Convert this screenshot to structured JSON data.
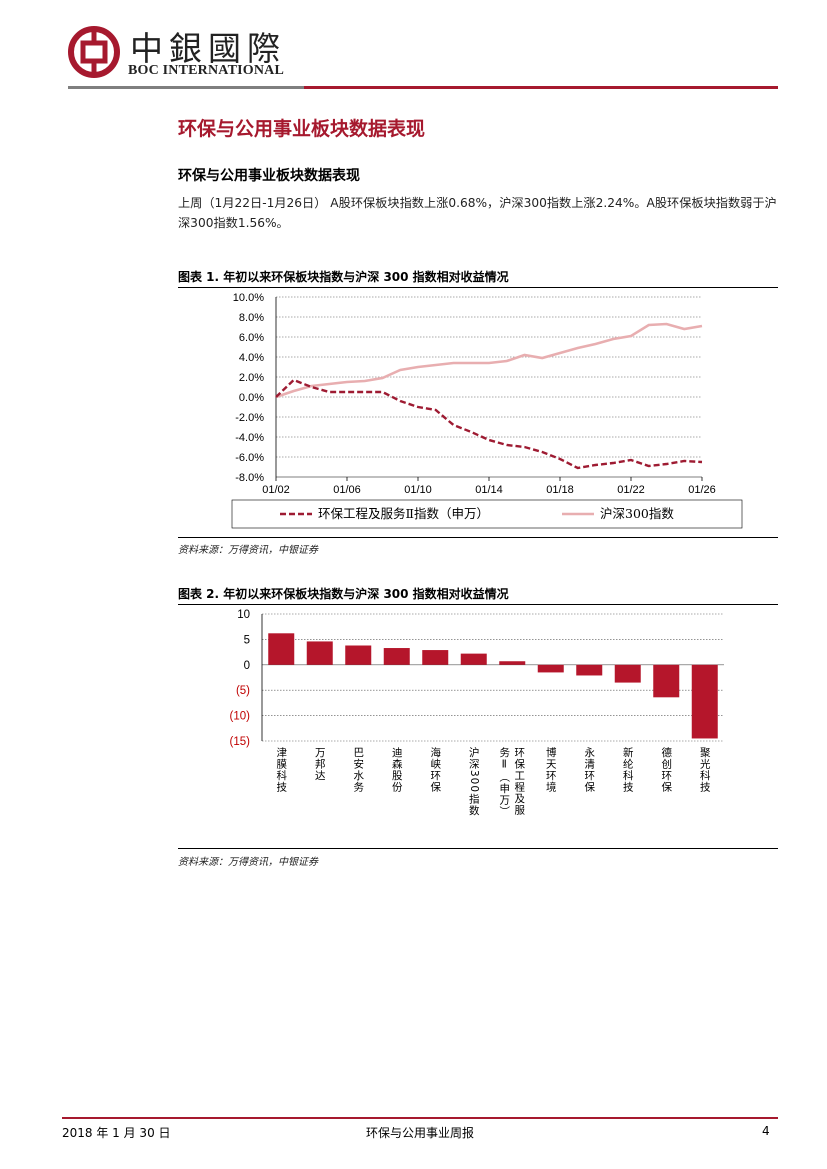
{
  "header": {
    "logo_cn": "中銀國際",
    "logo_en": "BOC INTERNATIONAL"
  },
  "section_title": "环保与公用事业板块数据表现",
  "subsection_title": "环保与公用事业板块数据表现",
  "paragraph": "上周（1月22日-1月26日） A股环保板块指数上涨0.68%，沪深300指数上涨2.24%。A股环保板块指数弱于沪深300指数1.56%。",
  "figure1": {
    "title": "图表 1. 年初以来环保板块指数与沪深 300 指数相对收益情况",
    "source": "资料来源：万得资讯，中银证券"
  },
  "figure2": {
    "title": "图表 2. 年初以来环保板块指数与沪深 300 指数相对收益情况",
    "source": "资料来源：万得资讯，中银证券"
  },
  "footer": {
    "date": "2018 年 1 月 30 日",
    "report": "环保与公用事业周报",
    "page": "4"
  },
  "colors": {
    "brand_red": "#a6192e",
    "series_env": "#9e1b32",
    "series_csi": "#e8aeb0",
    "bar": "#b5162b"
  },
  "chart_data": [
    {
      "type": "line",
      "x": [
        "01/02",
        "01/03",
        "01/04",
        "01/05",
        "01/06",
        "01/07",
        "01/08",
        "01/09",
        "01/10",
        "01/11",
        "01/12",
        "01/13",
        "01/14",
        "01/15",
        "01/16",
        "01/17",
        "01/18",
        "01/19",
        "01/20",
        "01/21",
        "01/22",
        "01/23",
        "01/24",
        "01/25",
        "01/26"
      ],
      "xticks": [
        "01/02",
        "01/06",
        "01/10",
        "01/14",
        "01/18",
        "01/22",
        "01/26"
      ],
      "series": [
        {
          "name": "环保工程及服务Ⅱ指数（申万）",
          "style": "dashed",
          "values": [
            0.0,
            1.7,
            1.0,
            0.5,
            0.5,
            0.5,
            0.5,
            -0.4,
            -1.0,
            -1.3,
            -2.8,
            -3.5,
            -4.3,
            -4.8,
            -5.0,
            -5.5,
            -6.2,
            -7.1,
            -6.8,
            -6.6,
            -6.3,
            -6.9,
            -6.7,
            -6.4,
            -6.5
          ]
        },
        {
          "name": "沪深300指数",
          "style": "solid",
          "values": [
            0.0,
            0.6,
            1.1,
            1.3,
            1.5,
            1.6,
            1.9,
            2.7,
            3.0,
            3.2,
            3.4,
            3.4,
            3.4,
            3.6,
            4.2,
            3.9,
            4.4,
            4.9,
            5.3,
            5.8,
            6.1,
            7.2,
            7.3,
            6.8,
            7.1
          ]
        }
      ],
      "yticks": [
        "10.0%",
        "8.0%",
        "6.0%",
        "4.0%",
        "2.0%",
        "0.0%",
        "-2.0%",
        "-4.0%",
        "-6.0%",
        "-8.0%"
      ],
      "ylim": [
        -8,
        10
      ],
      "legend": "bottom"
    },
    {
      "type": "bar",
      "categories": [
        "津膜科技",
        "万邦达",
        "巴安水务",
        "迪森股份",
        "海峡环保",
        "沪深300指数",
        "环保工程及服务Ⅱ（申万）",
        "博天环境",
        "永清环保",
        "新纶科技",
        "德创环保",
        "聚光科技"
      ],
      "values": [
        6.2,
        4.6,
        3.8,
        3.3,
        2.9,
        2.2,
        0.7,
        -1.5,
        -2.1,
        -3.5,
        -6.4,
        -14.5
      ],
      "yticks": [
        "10",
        "5",
        "0",
        "(5)",
        "(10)",
        "(15)"
      ],
      "ylim": [
        -15,
        10
      ]
    }
  ]
}
